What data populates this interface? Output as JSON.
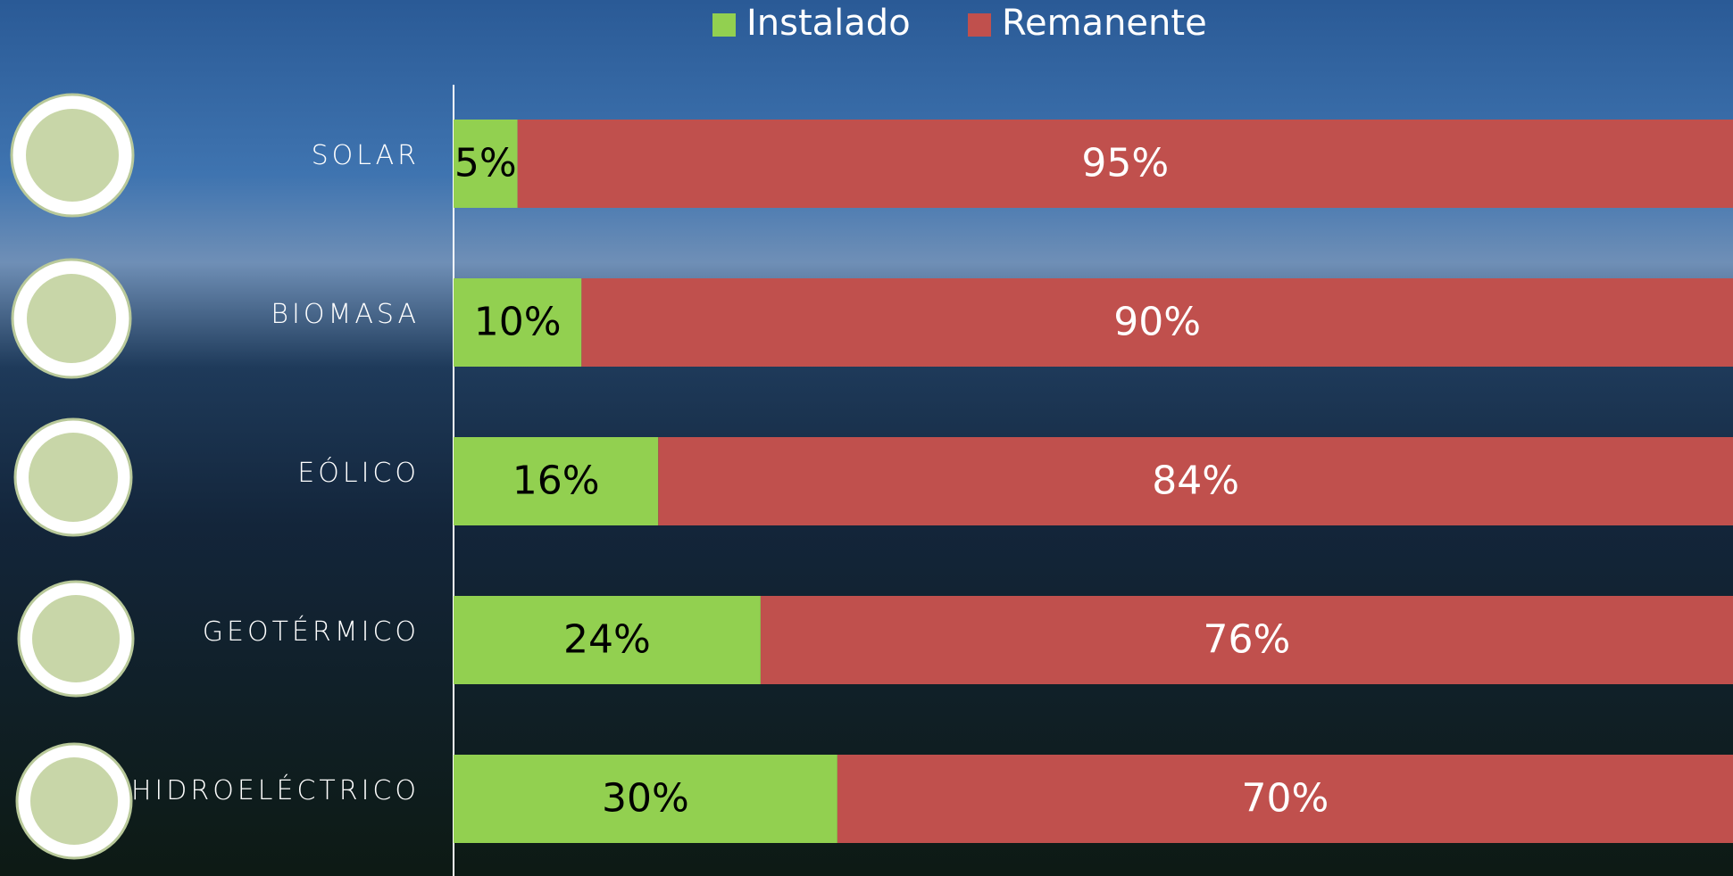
{
  "chart_data": {
    "type": "stacked-bar-horizontal",
    "categories": [
      "SOLAR",
      "BIOMASA",
      "EÓLICO",
      "GEOTÉRMICO",
      "HIDROELÉCTRICO"
    ],
    "series": [
      {
        "name": "Instalado",
        "color": "#92d050",
        "label_color": "#000000",
        "values": [
          5,
          10,
          16,
          24,
          30
        ],
        "value_labels": [
          "5%",
          "10%",
          "16%",
          "24%",
          "30%"
        ]
      },
      {
        "name": "Remanente",
        "color": "#c0504d",
        "label_color": "#ffffff",
        "values": [
          95,
          90,
          84,
          76,
          70
        ],
        "value_labels": [
          "95%",
          "90%",
          "84%",
          "76%",
          "70%"
        ]
      }
    ],
    "xlim": [
      0,
      100
    ],
    "legend": "top"
  }
}
